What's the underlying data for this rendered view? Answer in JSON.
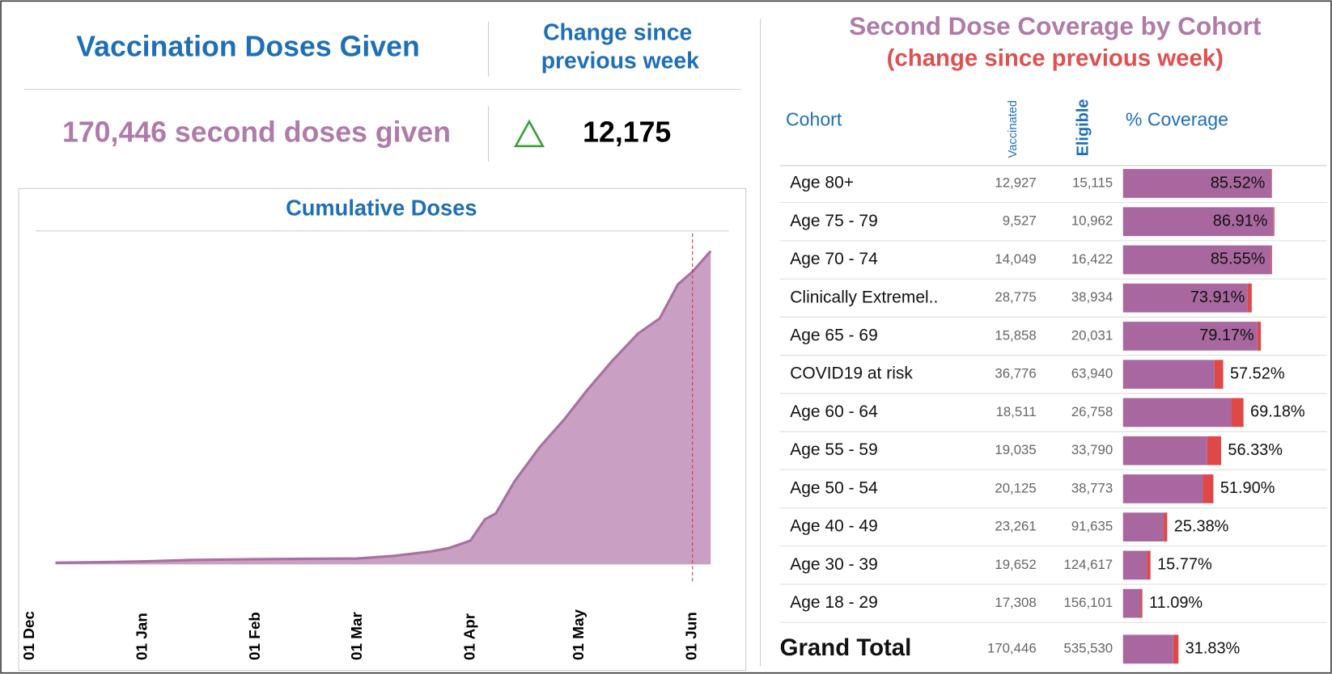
{
  "header": {
    "title": "Vaccination Doses Given",
    "change_label": [
      "Change since",
      "previous week"
    ],
    "doses_text": "170,446 second doses given",
    "change_value": "12,175"
  },
  "chart_data": {
    "type": "area",
    "title": "Cumulative Doses",
    "color": "#c9a0c3",
    "line_color": "#a870a0",
    "x": [
      7,
      20,
      31,
      45,
      62,
      75,
      90,
      100,
      110,
      115,
      121,
      125,
      128,
      133,
      140,
      147,
      153,
      160,
      167,
      173,
      178,
      182,
      187
    ],
    "values": [
      900,
      1200,
      1600,
      2400,
      2800,
      3000,
      3200,
      4600,
      7000,
      8800,
      12900,
      24500,
      27700,
      44800,
      63700,
      79400,
      94600,
      110800,
      125500,
      133800,
      152300,
      159200,
      170446
    ],
    "xlim": [
      -1,
      192
    ],
    "xticks": [
      {
        "value": 0,
        "label": "01 Dec"
      },
      {
        "value": 31,
        "label": "01 Jan"
      },
      {
        "value": 62,
        "label": "01 Feb"
      },
      {
        "value": 90,
        "label": "01 Mar"
      },
      {
        "value": 121,
        "label": "01 Apr"
      },
      {
        "value": 151,
        "label": "01 May"
      },
      {
        "value": 182,
        "label": "01 Jun"
      }
    ],
    "ylim": [
      0,
      180000
    ],
    "marker_x": 182,
    "marker_color": "#d03030"
  },
  "table": {
    "title": "Second Dose Coverage by Cohort",
    "subtitle": "(change since previous week)",
    "columns": [
      "Cohort",
      "Vaccinated",
      "Eligible",
      "% Coverage"
    ],
    "coverage_color": "#a8689f",
    "change_color": "#e04848",
    "xlim": [
      0,
      100
    ],
    "rows": [
      {
        "cohort": "Age 80+",
        "vaccinated": "12,927",
        "eligible": "15,115",
        "coverage": 85.52,
        "coverage_label": "85.52%",
        "change": 0.3
      },
      {
        "cohort": "Age 75 - 79",
        "vaccinated": "9,527",
        "eligible": "10,962",
        "coverage": 86.91,
        "coverage_label": "86.91%",
        "change": 0.5
      },
      {
        "cohort": "Age 70 - 74",
        "vaccinated": "14,049",
        "eligible": "16,422",
        "coverage": 85.55,
        "coverage_label": "85.55%",
        "change": 0.5
      },
      {
        "cohort": "Clinically Extremel..",
        "vaccinated": "28,775",
        "eligible": "38,934",
        "coverage": 73.91,
        "coverage_label": "73.91%",
        "change": 2.4
      },
      {
        "cohort": "Age 65 - 69",
        "vaccinated": "15,858",
        "eligible": "20,031",
        "coverage": 79.17,
        "coverage_label": "79.17%",
        "change": 2
      },
      {
        "cohort": "COVID19 at risk",
        "vaccinated": "36,776",
        "eligible": "63,940",
        "coverage": 57.52,
        "coverage_label": "57.52%",
        "change": 5
      },
      {
        "cohort": "Age 60 - 64",
        "vaccinated": "18,511",
        "eligible": "26,758",
        "coverage": 69.18,
        "coverage_label": "69.18%",
        "change": 7
      },
      {
        "cohort": "Age 55 - 59",
        "vaccinated": "19,035",
        "eligible": "33,790",
        "coverage": 56.33,
        "coverage_label": "56.33%",
        "change": 8
      },
      {
        "cohort": "Age 50 - 54",
        "vaccinated": "20,125",
        "eligible": "38,773",
        "coverage": 51.9,
        "coverage_label": "51.90%",
        "change": 6
      },
      {
        "cohort": "Age 40 - 49",
        "vaccinated": "23,261",
        "eligible": "91,635",
        "coverage": 25.38,
        "coverage_label": "25.38%",
        "change": 2
      },
      {
        "cohort": "Age 30 - 39",
        "vaccinated": "19,652",
        "eligible": "124,617",
        "coverage": 15.77,
        "coverage_label": "15.77%",
        "change": 2
      },
      {
        "cohort": "Age 18 - 29",
        "vaccinated": "17,308",
        "eligible": "156,101",
        "coverage": 11.09,
        "coverage_label": "11.09%",
        "change": 1
      }
    ],
    "total": {
      "cohort": "Grand Total",
      "vaccinated": "170,446",
      "eligible": "535,530",
      "coverage": 31.83,
      "coverage_label": "31.83%",
      "change": 3
    }
  }
}
